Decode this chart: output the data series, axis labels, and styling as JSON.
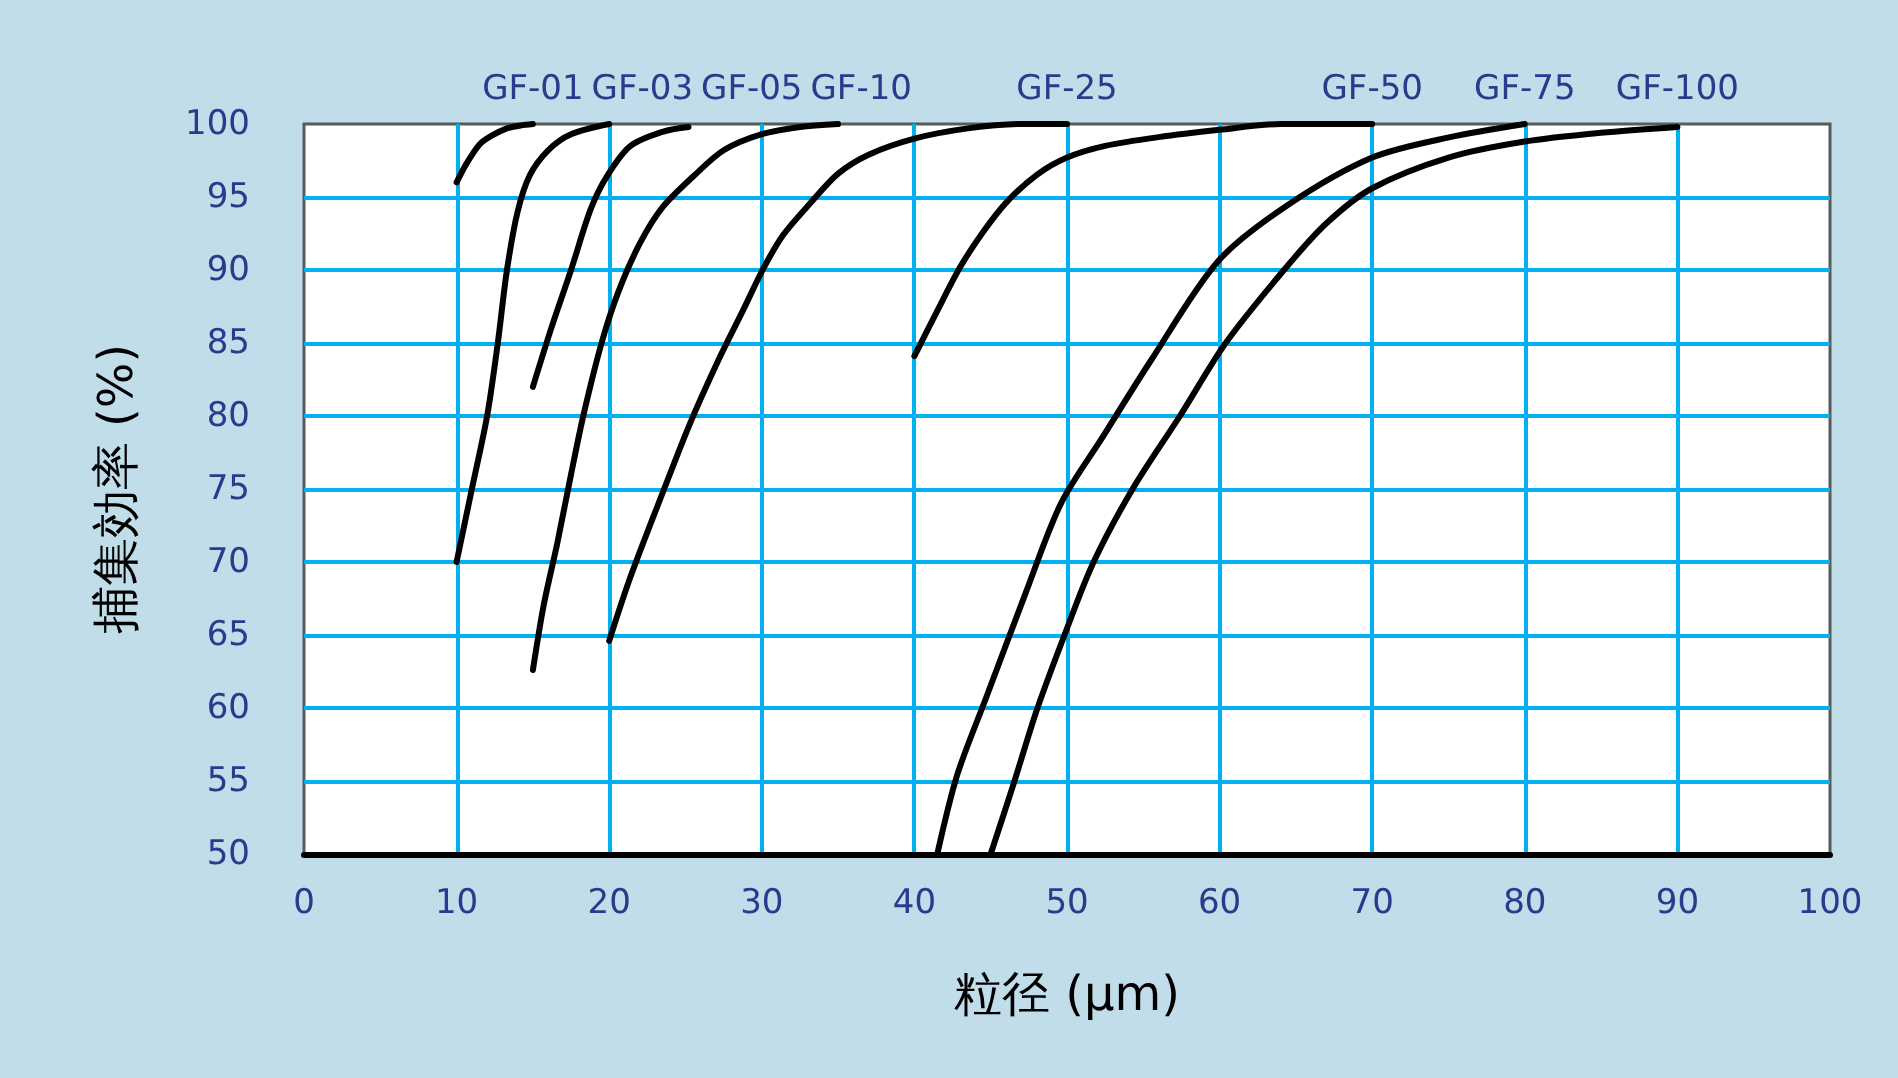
{
  "chart_data": {
    "type": "line",
    "xlabel": "粒径 (μm)",
    "ylabel": "捕集効率 (%)",
    "series": [
      {
        "name": "GF-01",
        "color": "#000000",
        "x": [
          10,
          10.6,
          11.5,
          12.3,
          13.3,
          14.2,
          15
        ],
        "values": [
          96,
          97.2,
          98.6,
          99.2,
          99.7,
          99.9,
          100
        ]
      },
      {
        "name": "GF-03",
        "color": "#000000",
        "x": [
          10,
          11,
          12,
          12.7,
          13.3,
          14,
          14.8,
          16,
          17.5,
          20
        ],
        "values": [
          70,
          75,
          80,
          85,
          90,
          94,
          96.5,
          98.2,
          99.3,
          100
        ]
      },
      {
        "name": "GF-05",
        "color": "#000000",
        "x": [
          15,
          16.2,
          17.5,
          18.8,
          19.9,
          21.4,
          23.6,
          25.2
        ],
        "values": [
          82,
          86,
          90,
          94.2,
          96.5,
          98.5,
          99.5,
          99.8
        ]
      },
      {
        "name": "GF-10",
        "color": "#000000",
        "x": [
          15,
          15.7,
          16.6,
          17.5,
          18.3,
          19.5,
          20.6,
          22,
          23.5,
          25.5,
          27.5,
          30,
          32.5,
          35
        ],
        "values": [
          62.6,
          67,
          71.3,
          76,
          80,
          85,
          88.5,
          91.8,
          94.3,
          96.4,
          98.2,
          99.3,
          99.8,
          100
        ]
      },
      {
        "name": "GF-25",
        "color": "#000000",
        "x": [
          20,
          21.4,
          23.6,
          25.3,
          27.1,
          28.8,
          30.1,
          31.4,
          33.2,
          35,
          37,
          40,
          43.5,
          47,
          50
        ],
        "values": [
          64.6,
          69,
          75,
          79.5,
          83.7,
          87.3,
          90.1,
          92.4,
          94.6,
          96.6,
          97.9,
          99,
          99.7,
          100,
          100
        ]
      },
      {
        "name": "GF-50",
        "color": "#000000",
        "x": [
          40,
          41.5,
          43,
          44.5,
          46,
          48,
          50,
          52.5,
          56,
          60,
          64,
          70
        ],
        "values": [
          84.1,
          87.2,
          90.2,
          92.6,
          94.6,
          96.5,
          97.7,
          98.5,
          99.1,
          99.6,
          100,
          100
        ]
      },
      {
        "name": "GF-75",
        "color": "#000000",
        "x": [
          41.5,
          42.8,
          44.7,
          47.3,
          49.6,
          52.3,
          55.5,
          59.9,
          64.4,
          70,
          75.1,
          80
        ],
        "values": [
          50,
          55.4,
          60.7,
          67.9,
          74,
          78.5,
          83.8,
          90.6,
          94.4,
          97.7,
          99.1,
          100
        ]
      },
      {
        "name": "GF-100",
        "color": "#000000",
        "x": [
          45,
          46.5,
          48,
          49.8,
          51.7,
          54.3,
          57.4,
          60.4,
          64.3,
          67,
          70,
          75,
          80,
          85,
          90
        ],
        "values": [
          50,
          54.8,
          59.8,
          64.9,
          69.9,
          75,
          80,
          85,
          90.1,
          93.2,
          95.6,
          97.7,
          98.8,
          99.4,
          99.8
        ]
      }
    ],
    "xlim": [
      0,
      100
    ],
    "xticks": [
      0,
      10,
      20,
      30,
      40,
      50,
      60,
      70,
      80,
      90,
      100
    ],
    "ylim": [
      50,
      100
    ],
    "yticks": [
      50,
      55,
      60,
      65,
      70,
      75,
      80,
      85,
      90,
      95,
      100
    ],
    "grid": true,
    "marker": "none",
    "line_style": "solid"
  }
}
